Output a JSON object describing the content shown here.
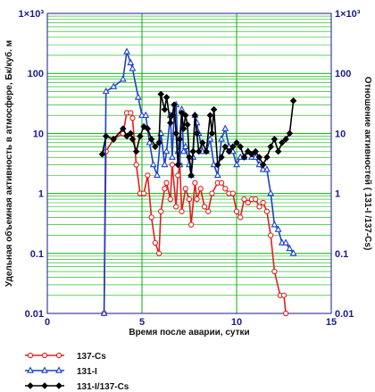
{
  "chart_data": {
    "type": "line",
    "xlabel": "Время после аварии, сутки",
    "ylabel_left": "Удельная объемная активность в атмосфере, Бк/куб. м",
    "ylabel_right": "Отношение активностей ( 131-I /137-Cs)",
    "x_ticks": [
      "0",
      "5",
      "10",
      "15"
    ],
    "y_ticks_left": [
      "0.01",
      "0.1",
      "1",
      "10",
      "100",
      "1×10³"
    ],
    "y_ticks_right": [
      "0.01",
      "0.1",
      "1",
      "10",
      "100",
      "1×10³"
    ],
    "xlim": [
      0,
      15
    ],
    "ylim": [
      0.01,
      1000
    ],
    "y_scale": "log",
    "grid": true,
    "colors": {
      "background": "#ffffff",
      "grid": "#00b400",
      "axes": "#1a1a8c"
    },
    "legend": {
      "placement": "bottom-left",
      "labels": [
        "137-Cs",
        "131-I",
        "131-I/137-Cs"
      ]
    },
    "series": [
      {
        "name": "137-Cs",
        "color": "#e02020",
        "marker": "circle",
        "points": [
          [
            3.0,
            0.01
          ],
          [
            3.1,
            5
          ],
          [
            3.5,
            8
          ],
          [
            4.0,
            10
          ],
          [
            4.2,
            22
          ],
          [
            4.4,
            22
          ],
          [
            4.5,
            18
          ],
          [
            4.7,
            3
          ],
          [
            4.9,
            1
          ],
          [
            5.1,
            1
          ],
          [
            5.3,
            2
          ],
          [
            5.5,
            0.4
          ],
          [
            5.7,
            0.15
          ],
          [
            5.9,
            0.1
          ],
          [
            6.0,
            0.5
          ],
          [
            6.2,
            1.2
          ],
          [
            6.3,
            1.5
          ],
          [
            6.5,
            0.8
          ],
          [
            6.6,
            3
          ],
          [
            6.8,
            0.6
          ],
          [
            6.9,
            2
          ],
          [
            7.0,
            3
          ],
          [
            7.1,
            0.5
          ],
          [
            7.3,
            1.2
          ],
          [
            7.5,
            0.8
          ],
          [
            7.6,
            0.3
          ],
          [
            7.8,
            1.5
          ],
          [
            7.9,
            0.8
          ],
          [
            8.1,
            1.2
          ],
          [
            8.3,
            0.6
          ],
          [
            8.5,
            0.5
          ],
          [
            8.7,
            1
          ],
          [
            9.0,
            1.5
          ],
          [
            9.2,
            1.5
          ],
          [
            9.4,
            1.2
          ],
          [
            9.6,
            1
          ],
          [
            9.8,
            1
          ],
          [
            10.0,
            0.5
          ],
          [
            10.2,
            0.4
          ],
          [
            10.4,
            0.8
          ],
          [
            10.6,
            0.7
          ],
          [
            10.8,
            0.8
          ],
          [
            11.0,
            0.8
          ],
          [
            11.2,
            0.6
          ],
          [
            11.4,
            0.7
          ],
          [
            11.6,
            0.5
          ],
          [
            11.8,
            0.2
          ],
          [
            12.0,
            0.05
          ],
          [
            12.3,
            0.02
          ],
          [
            12.5,
            0.02
          ],
          [
            12.6,
            0.01
          ]
        ]
      },
      {
        "name": "131-I",
        "color": "#1a3fd0",
        "marker": "triangle",
        "points": [
          [
            3.0,
            0.01
          ],
          [
            3.1,
            50
          ],
          [
            3.5,
            60
          ],
          [
            4.0,
            80
          ],
          [
            4.2,
            230
          ],
          [
            4.4,
            150
          ],
          [
            4.5,
            120
          ],
          [
            4.8,
            40
          ],
          [
            5.0,
            20
          ],
          [
            5.2,
            20
          ],
          [
            5.4,
            7
          ],
          [
            5.6,
            3
          ],
          [
            5.8,
            2
          ],
          [
            6.0,
            10
          ],
          [
            6.2,
            3
          ],
          [
            6.3,
            5
          ],
          [
            6.5,
            20
          ],
          [
            6.6,
            4
          ],
          [
            6.7,
            20
          ],
          [
            6.8,
            30
          ],
          [
            6.9,
            5
          ],
          [
            7.0,
            3
          ],
          [
            7.1,
            25
          ],
          [
            7.2,
            5
          ],
          [
            7.3,
            6
          ],
          [
            7.5,
            3
          ],
          [
            7.6,
            2
          ],
          [
            7.7,
            4
          ],
          [
            7.8,
            20
          ],
          [
            7.9,
            15
          ],
          [
            8.0,
            10
          ],
          [
            8.2,
            5
          ],
          [
            8.4,
            5
          ],
          [
            8.6,
            8
          ],
          [
            8.8,
            3
          ],
          [
            9.0,
            2
          ],
          [
            9.2,
            8
          ],
          [
            9.4,
            12
          ],
          [
            9.6,
            6
          ],
          [
            9.8,
            5
          ],
          [
            10.0,
            3
          ],
          [
            10.2,
            4
          ],
          [
            10.4,
            4
          ],
          [
            10.6,
            5
          ],
          [
            10.8,
            4
          ],
          [
            11.0,
            4
          ],
          [
            11.2,
            3
          ],
          [
            11.4,
            2.5
          ],
          [
            11.6,
            2.5
          ],
          [
            11.8,
            1
          ],
          [
            12.0,
            0.3
          ],
          [
            12.2,
            0.25
          ],
          [
            12.4,
            0.15
          ],
          [
            12.6,
            0.15
          ],
          [
            12.8,
            0.12
          ],
          [
            13.0,
            0.1
          ]
        ]
      },
      {
        "name": "131-I/137-Cs",
        "color": "#000000",
        "marker": "diamond",
        "points": [
          [
            2.9,
            4.5
          ],
          [
            3.1,
            9
          ],
          [
            3.5,
            8
          ],
          [
            4.0,
            12
          ],
          [
            4.2,
            9
          ],
          [
            4.4,
            10
          ],
          [
            4.5,
            8
          ],
          [
            4.7,
            5
          ],
          [
            4.9,
            9
          ],
          [
            5.1,
            13
          ],
          [
            5.3,
            12
          ],
          [
            5.5,
            8
          ],
          [
            5.7,
            6
          ],
          [
            5.9,
            7
          ],
          [
            6.0,
            45
          ],
          [
            6.2,
            25
          ],
          [
            6.3,
            40
          ],
          [
            6.5,
            15
          ],
          [
            6.6,
            20
          ],
          [
            6.7,
            30
          ],
          [
            6.8,
            10
          ],
          [
            6.9,
            3
          ],
          [
            7.0,
            8
          ],
          [
            7.1,
            22
          ],
          [
            7.2,
            12
          ],
          [
            7.3,
            20
          ],
          [
            7.4,
            14
          ],
          [
            7.5,
            4
          ],
          [
            7.6,
            2
          ],
          [
            7.7,
            5
          ],
          [
            7.8,
            20
          ],
          [
            7.9,
            10
          ],
          [
            8.0,
            5
          ],
          [
            8.2,
            7
          ],
          [
            8.4,
            5
          ],
          [
            8.6,
            20
          ],
          [
            8.7,
            10
          ],
          [
            8.8,
            25
          ],
          [
            9.0,
            3
          ],
          [
            9.2,
            4
          ],
          [
            9.4,
            6
          ],
          [
            9.6,
            5
          ],
          [
            9.8,
            6
          ],
          [
            10.0,
            7
          ],
          [
            10.2,
            6
          ],
          [
            10.4,
            4
          ],
          [
            10.6,
            5
          ],
          [
            10.8,
            4.5
          ],
          [
            11.0,
            5
          ],
          [
            11.2,
            4
          ],
          [
            11.4,
            3
          ],
          [
            11.6,
            4
          ],
          [
            11.8,
            6
          ],
          [
            12.0,
            8
          ],
          [
            12.2,
            5
          ],
          [
            12.4,
            7
          ],
          [
            12.6,
            8
          ],
          [
            12.8,
            10
          ],
          [
            13.0,
            35
          ]
        ]
      }
    ]
  }
}
